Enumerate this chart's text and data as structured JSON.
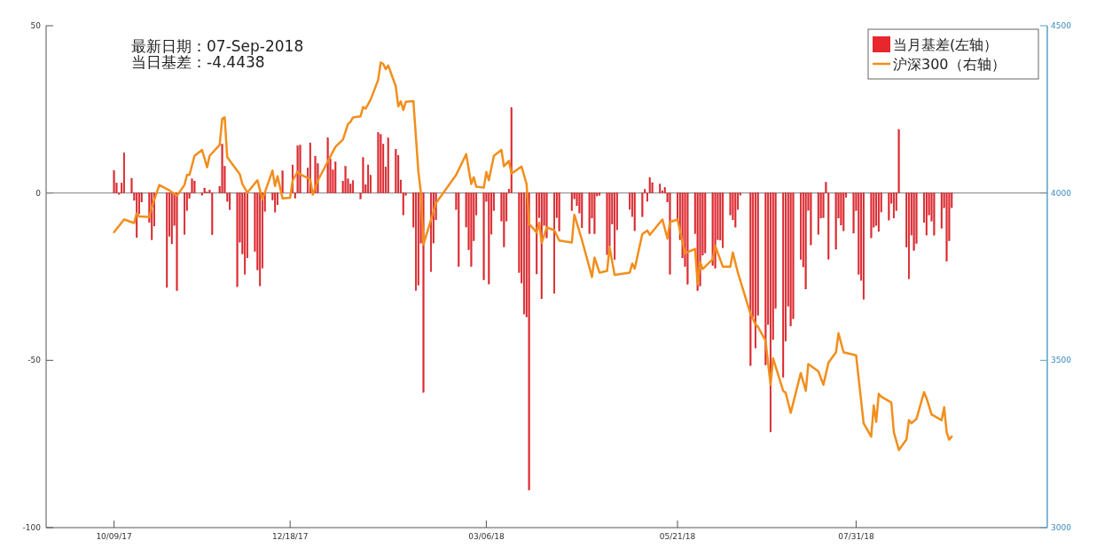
{
  "chart_data": {
    "type": "bar",
    "annotations": [
      "最新日期：07-Sep-2018",
      "当日基差：-4.4438"
    ],
    "xlim": [
      "2017-09-12",
      "2018-10-15"
    ],
    "xticks": [
      {
        "value": "2017-10-09",
        "label": "10/09/17"
      },
      {
        "value": "2017-12-18",
        "label": "12/18/17"
      },
      {
        "value": "2018-03-06",
        "label": "03/06/18"
      },
      {
        "value": "2018-05-21",
        "label": "05/21/18"
      },
      {
        "value": "2018-07-31",
        "label": "07/31/18"
      }
    ],
    "ylim": [
      -100,
      50
    ],
    "yticks": [
      -100,
      -50,
      0,
      50
    ],
    "y2lim": [
      3000,
      4500
    ],
    "y2ticks": [
      3000,
      3500,
      4000,
      4500
    ],
    "legend": "top right",
    "ref_lines": [
      {
        "axis": "y",
        "value": 0,
        "color": "#808080"
      }
    ],
    "x": [
      "2017-10-09",
      "2017-10-10",
      "2017-10-11",
      "2017-10-12",
      "2017-10-13",
      "2017-10-16",
      "2017-10-17",
      "2017-10-18",
      "2017-10-19",
      "2017-10-20",
      "2017-10-23",
      "2017-10-24",
      "2017-10-25",
      "2017-10-30",
      "2017-10-31",
      "2017-11-01",
      "2017-11-02",
      "2017-11-03",
      "2017-11-06",
      "2017-11-07",
      "2017-11-08",
      "2017-11-09",
      "2017-11-10",
      "2017-11-13",
      "2017-11-14",
      "2017-11-15",
      "2017-11-16",
      "2017-11-17",
      "2017-11-20",
      "2017-11-21",
      "2017-11-22",
      "2017-11-23",
      "2017-11-24",
      "2017-11-27",
      "2017-11-28",
      "2017-11-29",
      "2017-11-30",
      "2017-12-01",
      "2017-12-04",
      "2017-12-05",
      "2017-12-06",
      "2017-12-07",
      "2017-12-08",
      "2017-12-11",
      "2017-12-12",
      "2017-12-13",
      "2017-12-15",
      "2017-12-19",
      "2017-12-20",
      "2017-12-21",
      "2017-12-22",
      "2017-12-25",
      "2017-12-26",
      "2017-12-28",
      "2017-12-29",
      "2018-01-02",
      "2018-01-03",
      "2018-01-04",
      "2018-01-05",
      "2018-01-08",
      "2018-01-09",
      "2018-01-10",
      "2018-01-11",
      "2018-01-12",
      "2018-01-15",
      "2018-01-16",
      "2018-01-17",
      "2018-01-18",
      "2018-01-19",
      "2018-01-22",
      "2018-01-23",
      "2018-01-24",
      "2018-01-25",
      "2018-01-26",
      "2018-01-29",
      "2018-01-30",
      "2018-01-31",
      "2018-02-01",
      "2018-02-02",
      "2018-02-05",
      "2018-02-06",
      "2018-02-07",
      "2018-02-08",
      "2018-02-09",
      "2018-02-12",
      "2018-02-13",
      "2018-02-14",
      "2018-02-22",
      "2018-02-23",
      "2018-02-26",
      "2018-02-27",
      "2018-02-28",
      "2018-03-01",
      "2018-03-02",
      "2018-03-05",
      "2018-03-06",
      "2018-03-07",
      "2018-03-08",
      "2018-03-09",
      "2018-03-12",
      "2018-03-13",
      "2018-03-14",
      "2018-03-15",
      "2018-03-16",
      "2018-03-19",
      "2018-03-20",
      "2018-03-21",
      "2018-03-22",
      "2018-03-23",
      "2018-03-26",
      "2018-03-27",
      "2018-03-28",
      "2018-03-29",
      "2018-03-30",
      "2018-04-02",
      "2018-04-03",
      "2018-04-04",
      "2018-04-09",
      "2018-04-10",
      "2018-04-11",
      "2018-04-12",
      "2018-04-13",
      "2018-04-16",
      "2018-04-17",
      "2018-04-18",
      "2018-04-19",
      "2018-04-20",
      "2018-04-23",
      "2018-04-24",
      "2018-04-25",
      "2018-04-26",
      "2018-04-27",
      "2018-05-02",
      "2018-05-03",
      "2018-05-04",
      "2018-05-07",
      "2018-05-08",
      "2018-05-09",
      "2018-05-10",
      "2018-05-11",
      "2018-05-14",
      "2018-05-15",
      "2018-05-16",
      "2018-05-17",
      "2018-05-18",
      "2018-05-21",
      "2018-05-22",
      "2018-05-23",
      "2018-05-24",
      "2018-05-25",
      "2018-05-28",
      "2018-05-29",
      "2018-05-30",
      "2018-05-31",
      "2018-06-01",
      "2018-06-04",
      "2018-06-05",
      "2018-06-06",
      "2018-06-07",
      "2018-06-08",
      "2018-06-11",
      "2018-06-12",
      "2018-06-13",
      "2018-06-14",
      "2018-06-15",
      "2018-06-19",
      "2018-06-20",
      "2018-06-21",
      "2018-06-22",
      "2018-06-25",
      "2018-06-26",
      "2018-06-27",
      "2018-06-28",
      "2018-06-29",
      "2018-07-02",
      "2018-07-03",
      "2018-07-04",
      "2018-07-05",
      "2018-07-06",
      "2018-07-09",
      "2018-07-10",
      "2018-07-11",
      "2018-07-12",
      "2018-07-13",
      "2018-07-16",
      "2018-07-17",
      "2018-07-18",
      "2018-07-19",
      "2018-07-20",
      "2018-07-23",
      "2018-07-24",
      "2018-07-25",
      "2018-07-26",
      "2018-07-27",
      "2018-07-30",
      "2018-07-31",
      "2018-08-01",
      "2018-08-02",
      "2018-08-03",
      "2018-08-06",
      "2018-08-07",
      "2018-08-08",
      "2018-08-09",
      "2018-08-10",
      "2018-08-13",
      "2018-08-14",
      "2018-08-15",
      "2018-08-16",
      "2018-08-17",
      "2018-08-20",
      "2018-08-21",
      "2018-08-22",
      "2018-08-23",
      "2018-08-24",
      "2018-08-27",
      "2018-08-28",
      "2018-08-29",
      "2018-08-30",
      "2018-08-31",
      "2018-09-03",
      "2018-09-04",
      "2018-09-05",
      "2018-09-06",
      "2018-09-07"
    ],
    "series": [
      {
        "name": "当月基差(左轴）",
        "color": "#e8262d",
        "values": [
          6.7,
          3.0,
          -0.4,
          3,
          12,
          4.4,
          -2.2,
          -13.3,
          -6.2,
          -2.7,
          -8.8,
          -14,
          -9.9,
          -28.2,
          -13,
          -15.2,
          -9.7,
          -29.2,
          -12.4,
          -5.3,
          -1.6,
          4.2,
          3.6,
          -0.7,
          1.5,
          0.3,
          0.9,
          -12.5,
          2,
          14.6,
          8,
          -2.5,
          -5,
          -28,
          -14.7,
          -18.2,
          -24.3,
          -19.4,
          -17.5,
          -23,
          -27.8,
          -22.5,
          -5.5,
          -2.1,
          -5.7,
          -3.5,
          6.6,
          8.4,
          -1.6,
          14.1,
          14.3,
          7.5,
          15,
          11,
          8.8,
          16.4,
          10.2,
          6.9,
          9.3,
          3.5,
          8,
          4.2,
          2.7,
          3.7,
          -1.8,
          10.6,
          2.5,
          8.4,
          5.3,
          18.1,
          17.5,
          14.6,
          7.8,
          16.4,
          13.1,
          11.3,
          3.9,
          -6.6,
          -0.7,
          -10.2,
          -29.2,
          -27.6,
          -15,
          -59.6,
          -23.5,
          -15,
          -8,
          -5,
          -22,
          -10.2,
          -17,
          -22,
          -14.3,
          -6.6,
          -26,
          -2.5,
          -27.2,
          -12.3,
          -5.3,
          -8.4,
          -16.1,
          -8.4,
          1.2,
          25.5,
          -23.8,
          -26.9,
          -36.2,
          -37.1,
          -88.8,
          -24.2,
          -7.4,
          -31.6,
          -9.7,
          -13.4,
          -30,
          -7.4,
          -11.4,
          -5.3,
          -1.8,
          -3.8,
          -6,
          -10.4,
          -12.2,
          -7.5,
          -12.2,
          -0.9,
          -0.7,
          -18.4,
          -15.9,
          -9.3,
          -19.9,
          -11,
          -4.9,
          -7.1,
          -11.3,
          -7.1,
          1.1,
          -2.5,
          4.6,
          3.1,
          2.7,
          0.7,
          1.6,
          -2.7,
          -24.3,
          -8.4,
          -14,
          -19.4,
          -22,
          -27.3,
          -12.2,
          -29.2,
          -27.8,
          -18.6,
          -17.9,
          -21.7,
          -22.5,
          -14,
          -14.1,
          -16.4,
          -6.6,
          -8,
          -10.2,
          -4.9,
          -0.7,
          -51.6,
          -37.1,
          -46.4,
          -36.6,
          -51.4,
          -39.3,
          -71.4,
          -43.8,
          -34.5,
          -55.1,
          -44.3,
          -33.9,
          -39.8,
          -37.6,
          -19.9,
          -22.1,
          -28.7,
          -5.2,
          -15.5,
          -12.4,
          -7.5,
          -7.4,
          3.2,
          -19.8,
          -16.8,
          -7.5,
          -9.6,
          -11.3,
          -1.3,
          -12,
          -5.3,
          -24.3,
          -26.1,
          -31.8,
          -13.4,
          -10.2,
          -9.7,
          -11.5,
          -5.7,
          -8.1,
          -3.1,
          -7.5,
          -5.3,
          19,
          -16.2,
          -25.7,
          -12.6,
          -17.2,
          -15.1,
          -8.8,
          -12.6,
          -6.6,
          -8.4,
          -12.6,
          -10.6,
          -4.4,
          -20.4,
          -14.3,
          -4.4
        ]
      },
      {
        "name": "沪深300（右轴）",
        "type": "line",
        "axis": "y2",
        "color": "#f28e1c",
        "x": [
          "2017-10-09",
          "2017-10-13",
          "2017-10-16",
          "2017-10-17",
          "2017-10-18",
          "2017-10-19",
          "2017-10-23",
          "2017-10-24",
          "2017-10-27",
          "2017-10-31",
          "2017-11-03",
          "2017-11-06",
          "2017-11-07",
          "2017-11-08",
          "2017-11-10",
          "2017-11-13",
          "2017-11-15",
          "2017-11-16",
          "2017-11-20",
          "2017-11-21",
          "2017-11-22",
          "2017-11-23",
          "2017-11-28",
          "2017-11-29",
          "2017-12-01",
          "2017-12-05",
          "2017-12-07",
          "2017-12-11",
          "2017-12-12",
          "2017-12-13",
          "2017-12-15",
          "2017-12-18",
          "2017-12-19",
          "2017-12-21",
          "2017-12-22",
          "2017-12-26",
          "2017-12-27",
          "2017-12-29",
          "2018-01-05",
          "2018-01-08",
          "2018-01-10",
          "2018-01-11",
          "2018-01-12",
          "2018-01-15",
          "2018-01-16",
          "2018-01-17",
          "2018-01-19",
          "2018-01-22",
          "2018-01-23",
          "2018-01-24",
          "2018-01-25",
          "2018-01-26",
          "2018-01-29",
          "2018-01-30",
          "2018-01-31",
          "2018-02-01",
          "2018-02-02",
          "2018-02-05",
          "2018-02-07",
          "2018-02-08",
          "2018-02-09",
          "2018-02-14",
          "2018-02-22",
          "2018-02-26",
          "2018-02-28",
          "2018-03-01",
          "2018-03-02",
          "2018-03-05",
          "2018-03-06",
          "2018-03-07",
          "2018-03-09",
          "2018-03-12",
          "2018-03-13",
          "2018-03-15",
          "2018-03-16",
          "2018-03-20",
          "2018-03-22",
          "2018-03-23",
          "2018-03-26",
          "2018-03-27",
          "2018-03-28",
          "2018-03-30",
          "2018-04-02",
          "2018-04-04",
          "2018-04-09",
          "2018-04-10",
          "2018-04-13",
          "2018-04-17",
          "2018-04-18",
          "2018-04-20",
          "2018-04-23",
          "2018-04-24",
          "2018-04-26",
          "2018-05-02",
          "2018-05-03",
          "2018-05-04",
          "2018-05-07",
          "2018-05-09",
          "2018-05-10",
          "2018-05-15",
          "2018-05-17",
          "2018-05-18",
          "2018-05-21",
          "2018-05-24",
          "2018-05-28",
          "2018-05-29",
          "2018-05-30",
          "2018-05-31",
          "2018-06-04",
          "2018-06-05",
          "2018-06-08",
          "2018-06-11",
          "2018-06-12",
          "2018-06-14",
          "2018-06-19",
          "2018-06-21",
          "2018-06-22",
          "2018-06-25",
          "2018-06-27",
          "2018-06-28",
          "2018-07-02",
          "2018-07-03",
          "2018-07-05",
          "2018-07-09",
          "2018-07-11",
          "2018-07-12",
          "2018-07-16",
          "2018-07-18",
          "2018-07-20",
          "2018-07-23",
          "2018-07-24",
          "2018-07-26",
          "2018-07-31",
          "2018-08-03",
          "2018-08-06",
          "2018-08-07",
          "2018-08-08",
          "2018-08-09",
          "2018-08-10",
          "2018-08-14",
          "2018-08-15",
          "2018-08-17",
          "2018-08-20",
          "2018-08-21",
          "2018-08-22",
          "2018-08-24",
          "2018-08-27",
          "2018-08-28",
          "2018-08-30",
          "2018-09-03",
          "2018-09-04",
          "2018-09-05",
          "2018-09-06",
          "2018-09-07"
        ],
        "values": [
          3883,
          3921,
          3913,
          3910,
          3939,
          3930,
          3928,
          3957,
          4024,
          4008,
          3992,
          4024,
          4054,
          4054,
          4111,
          4129,
          4077,
          4111,
          4144,
          4222,
          4226,
          4107,
          4056,
          4027,
          4001,
          4038,
          3981,
          4067,
          4021,
          4050,
          3984,
          3986,
          4037,
          4064,
          4056,
          4041,
          3995,
          4037,
          4138,
          4160,
          4206,
          4213,
          4226,
          4229,
          4257,
          4252,
          4279,
          4338,
          4390,
          4386,
          4370,
          4381,
          4319,
          4259,
          4274,
          4248,
          4273,
          4275,
          4063,
          4001,
          3846,
          3970,
          4054,
          4116,
          4027,
          4047,
          4019,
          4016,
          4063,
          4038,
          4111,
          4129,
          4080,
          4096,
          4058,
          4079,
          4027,
          3908,
          3882,
          3911,
          3851,
          3897,
          3889,
          3858,
          3852,
          3935,
          3860,
          3749,
          3807,
          3762,
          3767,
          3838,
          3755,
          3762,
          3789,
          3774,
          3877,
          3888,
          3875,
          3921,
          3864,
          3913,
          3921,
          3820,
          3833,
          3727,
          3793,
          3773,
          3802,
          3842,
          3780,
          3780,
          3822,
          3762,
          3639,
          3608,
          3600,
          3559,
          3427,
          3506,
          3409,
          3403,
          3343,
          3462,
          3409,
          3489,
          3467,
          3427,
          3493,
          3524,
          3581,
          3524,
          3515,
          3312,
          3272,
          3365,
          3316,
          3400,
          3391,
          3374,
          3285,
          3232,
          3263,
          3321,
          3312,
          3325,
          3405,
          3387,
          3338,
          3321,
          3360,
          3285,
          3263,
          3272
        ]
      }
    ]
  }
}
